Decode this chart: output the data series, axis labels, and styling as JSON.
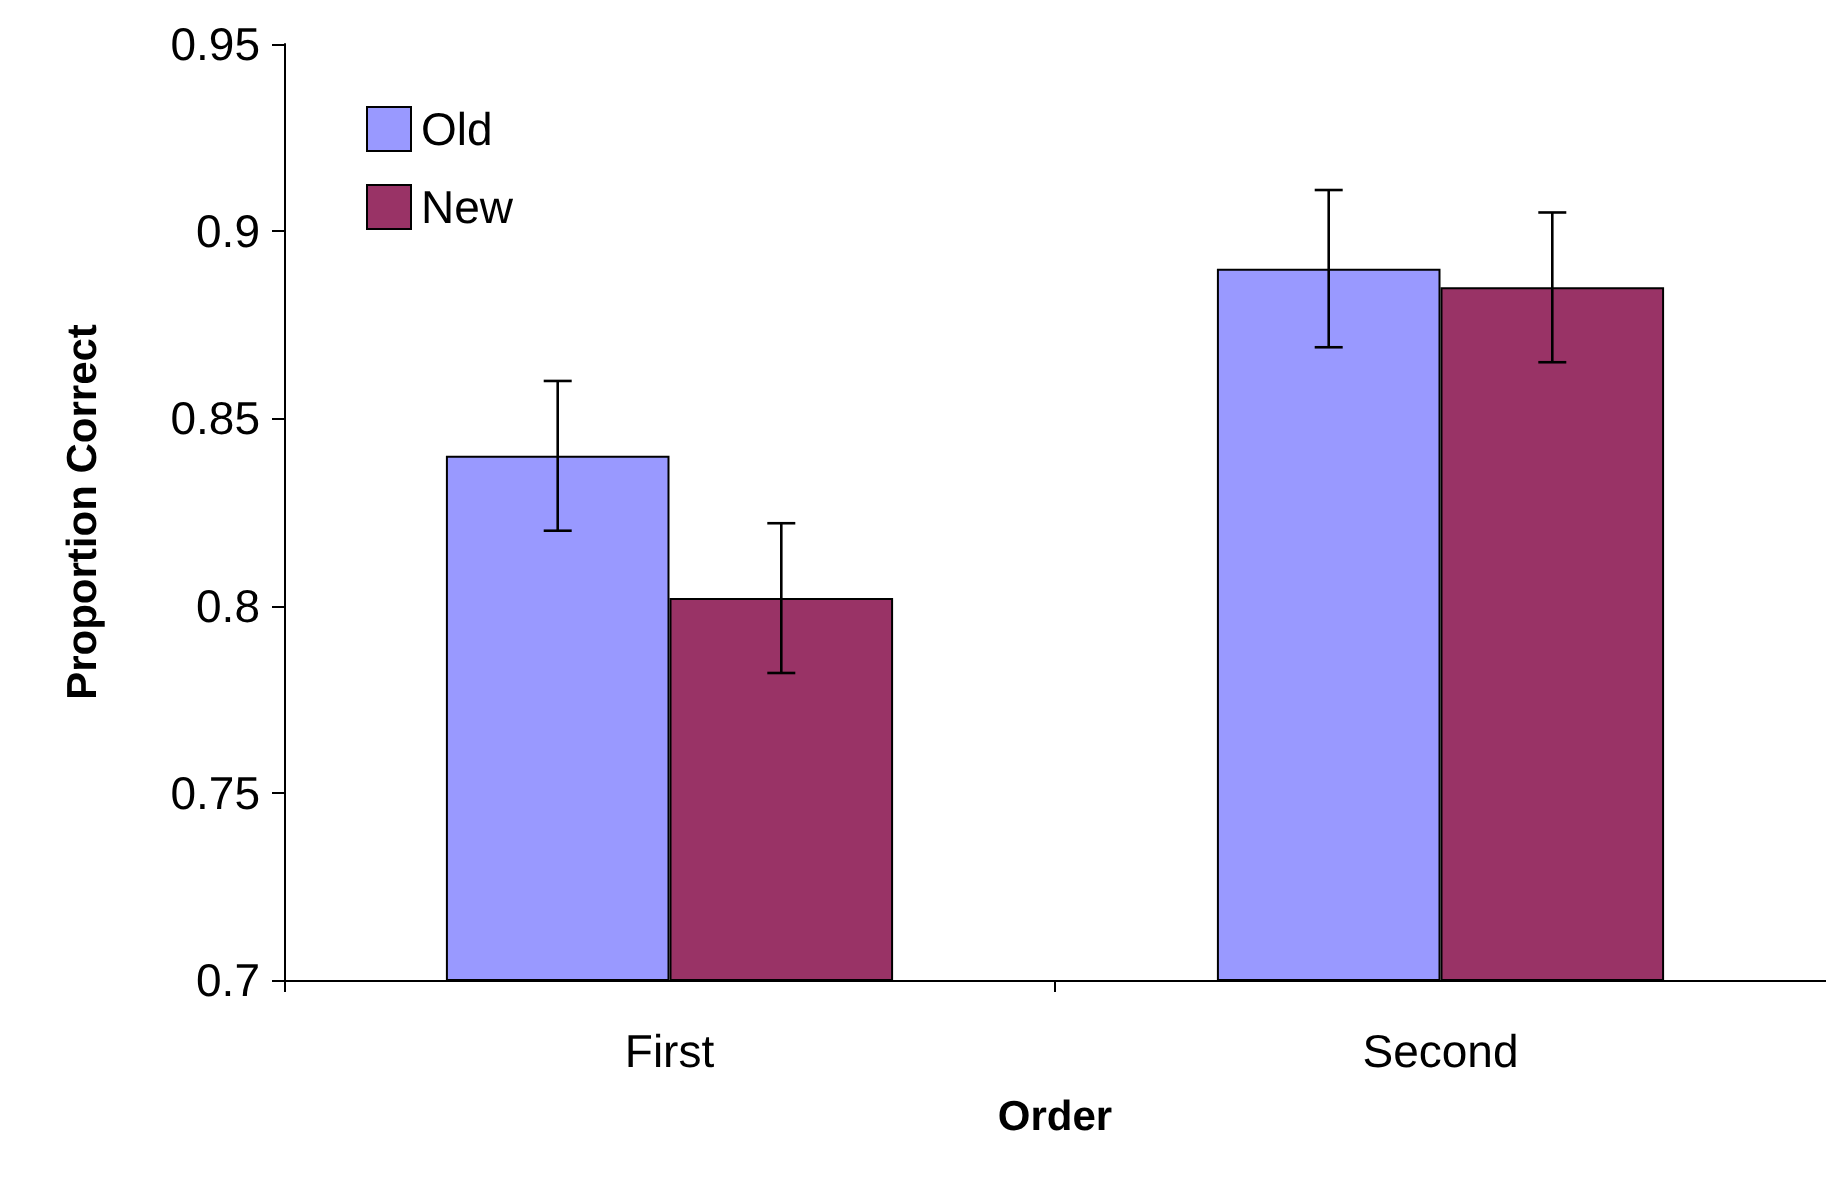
{
  "chart_data": {
    "type": "bar",
    "categories": [
      "First",
      "Second"
    ],
    "xlabel": "Order",
    "ylabel": "Proportion Correct",
    "ylim": [
      0.7,
      0.95
    ],
    "yticks": [
      0.7,
      0.75,
      0.8,
      0.85,
      0.9,
      0.95
    ],
    "grid": false,
    "legend": "top left",
    "series": [
      {
        "name": "Old",
        "color": "#9999ff",
        "values": [
          0.84,
          0.89
        ],
        "errors": [
          0.02,
          0.021
        ]
      },
      {
        "name": "New",
        "color": "#993366",
        "values": [
          0.802,
          0.885
        ],
        "errors": [
          0.02,
          0.02
        ]
      }
    ]
  }
}
